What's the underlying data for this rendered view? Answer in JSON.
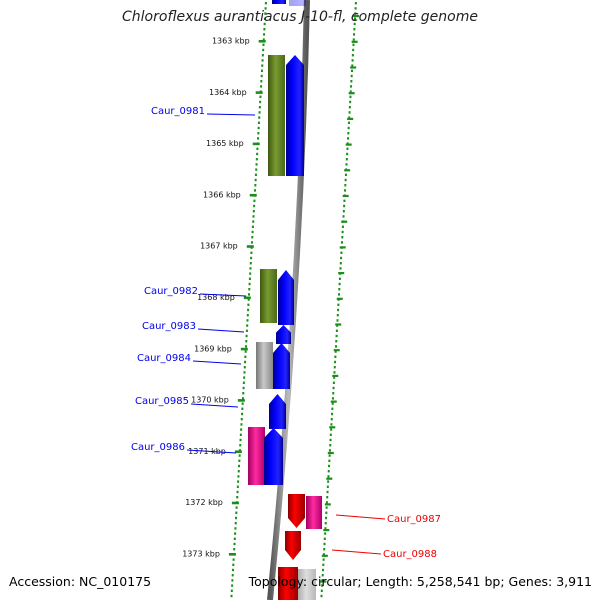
{
  "title": "Chloroflexus aurantiacus J-10-fl, complete genome",
  "footer": {
    "accession": "Accession: NC_010175",
    "topology": "Topology: circular; Length: 5,258,541 bp; Genes: 3,911"
  },
  "colors": {
    "plus_strand_blue": "#0000ee",
    "minus_strand_red": "#ee0000",
    "cog_olive": "#6b8e23",
    "cog_gray": "#a8a8a8",
    "cog_pink": "#ff1493",
    "backbone_gray": "#888888",
    "tick_green": "#1a8f1a"
  },
  "scale": {
    "labels": [
      "1363 kbp",
      "1364 kbp",
      "1365 kbp",
      "1366 kbp",
      "1367 kbp",
      "1368 kbp",
      "1369 kbp",
      "1370 kbp",
      "1371 kbp",
      "1372 kbp",
      "1373 kbp"
    ]
  },
  "genes": [
    {
      "name": "Caur_0981",
      "strand": "plus",
      "cog": "olive"
    },
    {
      "name": "Caur_0982",
      "strand": "plus",
      "cog": "olive"
    },
    {
      "name": "Caur_0983",
      "strand": "plus",
      "cog": "none"
    },
    {
      "name": "Caur_0984",
      "strand": "plus",
      "cog": "gray"
    },
    {
      "name": "Caur_0985",
      "strand": "plus",
      "cog": "none"
    },
    {
      "name": "Caur_0986",
      "strand": "plus",
      "cog": "pink"
    },
    {
      "name": "Caur_0987",
      "strand": "minus",
      "cog": "pink"
    },
    {
      "name": "Caur_0988",
      "strand": "minus",
      "cog": "none"
    }
  ]
}
